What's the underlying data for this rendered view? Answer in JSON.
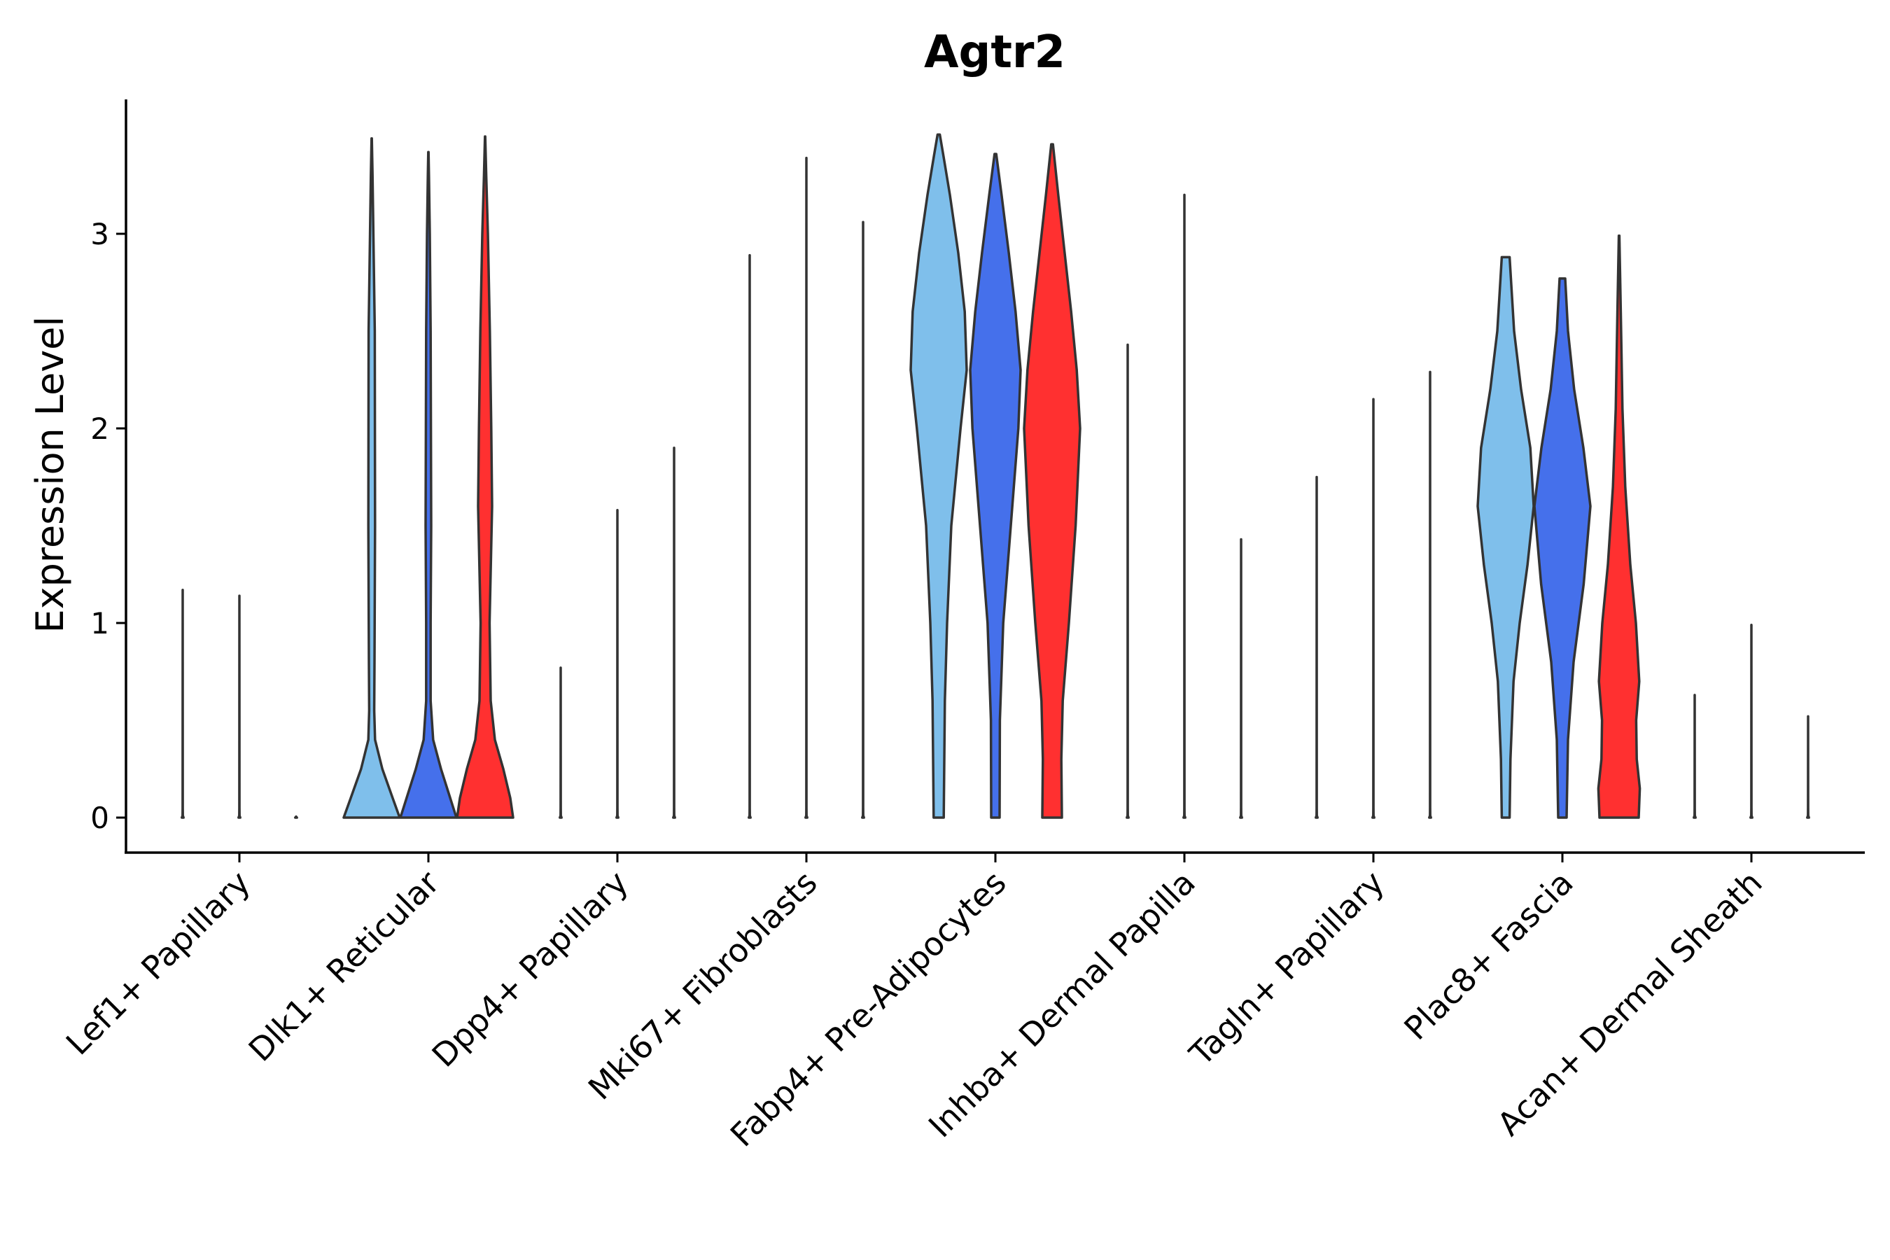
{
  "chart_data": {
    "type": "violin",
    "title": "Agtr2",
    "xlabel": "",
    "ylabel": "Expression Level",
    "ylim": [
      -0.17,
      3.7
    ],
    "yticks": [
      0,
      1,
      2,
      3
    ],
    "legend": "none",
    "colors": {
      "light_blue": "#7fbfeb",
      "blue": "#4570eb",
      "red": "#ff3030",
      "outline": "#333333"
    },
    "categories": [
      {
        "label": "Lef1+ Papillary",
        "violins": [
          {
            "color": "light_blue",
            "max": 1.17,
            "profile": [
              [
                0,
                0.03
              ],
              [
                0.01,
                0.006
              ],
              [
                0.05,
                0.002
              ],
              [
                1.17,
                0
              ]
            ]
          },
          {
            "color": "blue",
            "max": 1.14,
            "profile": [
              [
                0,
                0.03
              ],
              [
                0.01,
                0.006
              ],
              [
                0.05,
                0.002
              ],
              [
                1.14,
                0
              ]
            ]
          },
          {
            "color": "red",
            "max": 0,
            "profile": [
              [
                0,
                0.03
              ],
              [
                0.005,
                0
              ]
            ]
          }
        ]
      },
      {
        "label": "Dlk1+ Reticular",
        "violins": [
          {
            "color": "light_blue",
            "max": 3.49,
            "profile": [
              [
                0,
                1.0
              ],
              [
                0.1,
                0.75
              ],
              [
                0.25,
                0.38
              ],
              [
                0.4,
                0.12
              ],
              [
                0.55,
                0.09
              ],
              [
                0.8,
                0.1
              ],
              [
                1.5,
                0.12
              ],
              [
                2.5,
                0.11
              ],
              [
                3.0,
                0.06
              ],
              [
                3.3,
                0.03
              ],
              [
                3.49,
                0.005
              ]
            ]
          },
          {
            "color": "blue",
            "max": 3.42,
            "profile": [
              [
                0,
                1.0
              ],
              [
                0.1,
                0.78
              ],
              [
                0.25,
                0.45
              ],
              [
                0.4,
                0.17
              ],
              [
                0.6,
                0.08
              ],
              [
                1.0,
                0.08
              ],
              [
                1.5,
                0.1
              ],
              [
                2.0,
                0.09
              ],
              [
                2.5,
                0.08
              ],
              [
                3.0,
                0.05
              ],
              [
                3.3,
                0.02
              ],
              [
                3.42,
                0.005
              ]
            ]
          },
          {
            "color": "red",
            "max": 3.5,
            "profile": [
              [
                0,
                1.0
              ],
              [
                0.1,
                0.9
              ],
              [
                0.25,
                0.65
              ],
              [
                0.4,
                0.35
              ],
              [
                0.6,
                0.2
              ],
              [
                1.0,
                0.16
              ],
              [
                1.6,
                0.25
              ],
              [
                2.0,
                0.22
              ],
              [
                2.5,
                0.17
              ],
              [
                3.0,
                0.1
              ],
              [
                3.3,
                0.04
              ],
              [
                3.5,
                0.005
              ]
            ]
          }
        ]
      },
      {
        "label": "Dpp4+ Papillary",
        "violins": [
          {
            "color": "light_blue",
            "max": 0.77,
            "profile": [
              [
                0,
                0.03
              ],
              [
                0.01,
                0.006
              ],
              [
                0.05,
                0.002
              ],
              [
                0.77,
                0
              ]
            ]
          },
          {
            "color": "blue",
            "max": 1.58,
            "profile": [
              [
                0,
                0.03
              ],
              [
                0.01,
                0.006
              ],
              [
                0.05,
                0.002
              ],
              [
                1.58,
                0
              ]
            ]
          },
          {
            "color": "red",
            "max": 1.9,
            "profile": [
              [
                0,
                0.03
              ],
              [
                0.01,
                0.006
              ],
              [
                0.05,
                0.002
              ],
              [
                1.9,
                0
              ]
            ]
          }
        ]
      },
      {
        "label": "Mki67+ Fibroblasts",
        "violins": [
          {
            "color": "light_blue",
            "max": 2.89,
            "profile": [
              [
                0,
                0.03
              ],
              [
                0.01,
                0.006
              ],
              [
                0.05,
                0.002
              ],
              [
                2.89,
                0
              ]
            ]
          },
          {
            "color": "blue",
            "max": 3.39,
            "profile": [
              [
                0,
                0.03
              ],
              [
                0.01,
                0.006
              ],
              [
                0.05,
                0.002
              ],
              [
                3.39,
                0
              ]
            ]
          },
          {
            "color": "red",
            "max": 3.06,
            "profile": [
              [
                0,
                0.03
              ],
              [
                0.01,
                0.006
              ],
              [
                0.05,
                0.002
              ],
              [
                3.06,
                0
              ]
            ]
          }
        ]
      },
      {
        "label": "Fabp4+ Pre-Adipocytes",
        "violins": [
          {
            "color": "light_blue",
            "max": 3.51,
            "profile": [
              [
                0,
                0.18
              ],
              [
                0.3,
                0.2
              ],
              [
                0.6,
                0.22
              ],
              [
                1.0,
                0.3
              ],
              [
                1.5,
                0.45
              ],
              [
                2.0,
                0.78
              ],
              [
                2.3,
                1.0
              ],
              [
                2.6,
                0.93
              ],
              [
                2.9,
                0.7
              ],
              [
                3.2,
                0.4
              ],
              [
                3.4,
                0.17
              ],
              [
                3.51,
                0.04
              ]
            ]
          },
          {
            "color": "blue",
            "max": 3.41,
            "profile": [
              [
                0,
                0.15
              ],
              [
                0.5,
                0.16
              ],
              [
                1.0,
                0.28
              ],
              [
                1.5,
                0.55
              ],
              [
                2.0,
                0.82
              ],
              [
                2.3,
                0.9
              ],
              [
                2.6,
                0.72
              ],
              [
                2.9,
                0.48
              ],
              [
                3.2,
                0.22
              ],
              [
                3.41,
                0.03
              ]
            ]
          },
          {
            "color": "red",
            "max": 3.46,
            "profile": [
              [
                0,
                0.35
              ],
              [
                0.3,
                0.33
              ],
              [
                0.6,
                0.38
              ],
              [
                1.0,
                0.6
              ],
              [
                1.5,
                0.84
              ],
              [
                2.0,
                1.0
              ],
              [
                2.3,
                0.88
              ],
              [
                2.6,
                0.68
              ],
              [
                2.9,
                0.45
              ],
              [
                3.2,
                0.22
              ],
              [
                3.46,
                0.03
              ]
            ]
          }
        ]
      },
      {
        "label": "Inhba+ Dermal Papilla",
        "violins": [
          {
            "color": "light_blue",
            "max": 2.43,
            "profile": [
              [
                0,
                0.03
              ],
              [
                0.01,
                0.006
              ],
              [
                0.05,
                0.002
              ],
              [
                2.43,
                0
              ]
            ]
          },
          {
            "color": "blue",
            "max": 3.2,
            "profile": [
              [
                0,
                0.03
              ],
              [
                0.01,
                0.006
              ],
              [
                0.05,
                0.002
              ],
              [
                3.2,
                0
              ]
            ]
          },
          {
            "color": "red",
            "max": 1.43,
            "profile": [
              [
                0,
                0.03
              ],
              [
                0.01,
                0.006
              ],
              [
                0.05,
                0.002
              ],
              [
                1.43,
                0
              ]
            ]
          }
        ]
      },
      {
        "label": "Tagln+ Papillary",
        "violins": [
          {
            "color": "light_blue",
            "max": 1.75,
            "profile": [
              [
                0,
                0.03
              ],
              [
                0.01,
                0.006
              ],
              [
                0.05,
                0.002
              ],
              [
                1.75,
                0
              ]
            ]
          },
          {
            "color": "blue",
            "max": 2.15,
            "profile": [
              [
                0,
                0.03
              ],
              [
                0.01,
                0.006
              ],
              [
                0.05,
                0.002
              ],
              [
                2.15,
                0
              ]
            ]
          },
          {
            "color": "red",
            "max": 2.29,
            "profile": [
              [
                0,
                0.03
              ],
              [
                0.01,
                0.006
              ],
              [
                0.05,
                0.002
              ],
              [
                2.29,
                0
              ]
            ]
          }
        ]
      },
      {
        "label": "Plac8+ Fascia",
        "violins": [
          {
            "color": "light_blue",
            "max": 2.88,
            "profile": [
              [
                0,
                0.14
              ],
              [
                0.3,
                0.17
              ],
              [
                0.7,
                0.28
              ],
              [
                1.0,
                0.5
              ],
              [
                1.3,
                0.78
              ],
              [
                1.6,
                1.0
              ],
              [
                1.9,
                0.88
              ],
              [
                2.2,
                0.55
              ],
              [
                2.5,
                0.3
              ],
              [
                2.88,
                0.14
              ]
            ]
          },
          {
            "color": "blue",
            "max": 2.77,
            "profile": [
              [
                0,
                0.15
              ],
              [
                0.4,
                0.2
              ],
              [
                0.8,
                0.4
              ],
              [
                1.2,
                0.76
              ],
              [
                1.6,
                1.0
              ],
              [
                1.9,
                0.75
              ],
              [
                2.2,
                0.42
              ],
              [
                2.5,
                0.2
              ],
              [
                2.77,
                0.1
              ]
            ]
          },
          {
            "color": "red",
            "max": 2.99,
            "profile": [
              [
                0,
                0.7
              ],
              [
                0.15,
                0.74
              ],
              [
                0.3,
                0.63
              ],
              [
                0.5,
                0.61
              ],
              [
                0.7,
                0.72
              ],
              [
                1.0,
                0.6
              ],
              [
                1.3,
                0.4
              ],
              [
                1.7,
                0.22
              ],
              [
                2.1,
                0.12
              ],
              [
                2.6,
                0.06
              ],
              [
                2.99,
                0.01
              ]
            ]
          }
        ]
      },
      {
        "label": "Acan+ Dermal Sheath",
        "violins": [
          {
            "color": "light_blue",
            "max": 0.63,
            "profile": [
              [
                0,
                0.03
              ],
              [
                0.01,
                0.006
              ],
              [
                0.05,
                0.002
              ],
              [
                0.63,
                0
              ]
            ]
          },
          {
            "color": "blue",
            "max": 0.99,
            "profile": [
              [
                0,
                0.03
              ],
              [
                0.01,
                0.006
              ],
              [
                0.05,
                0.002
              ],
              [
                0.99,
                0
              ]
            ]
          },
          {
            "color": "red",
            "max": 0.52,
            "profile": [
              [
                0,
                0.03
              ],
              [
                0.01,
                0.006
              ],
              [
                0.05,
                0.002
              ],
              [
                0.52,
                0
              ]
            ]
          }
        ]
      }
    ]
  }
}
